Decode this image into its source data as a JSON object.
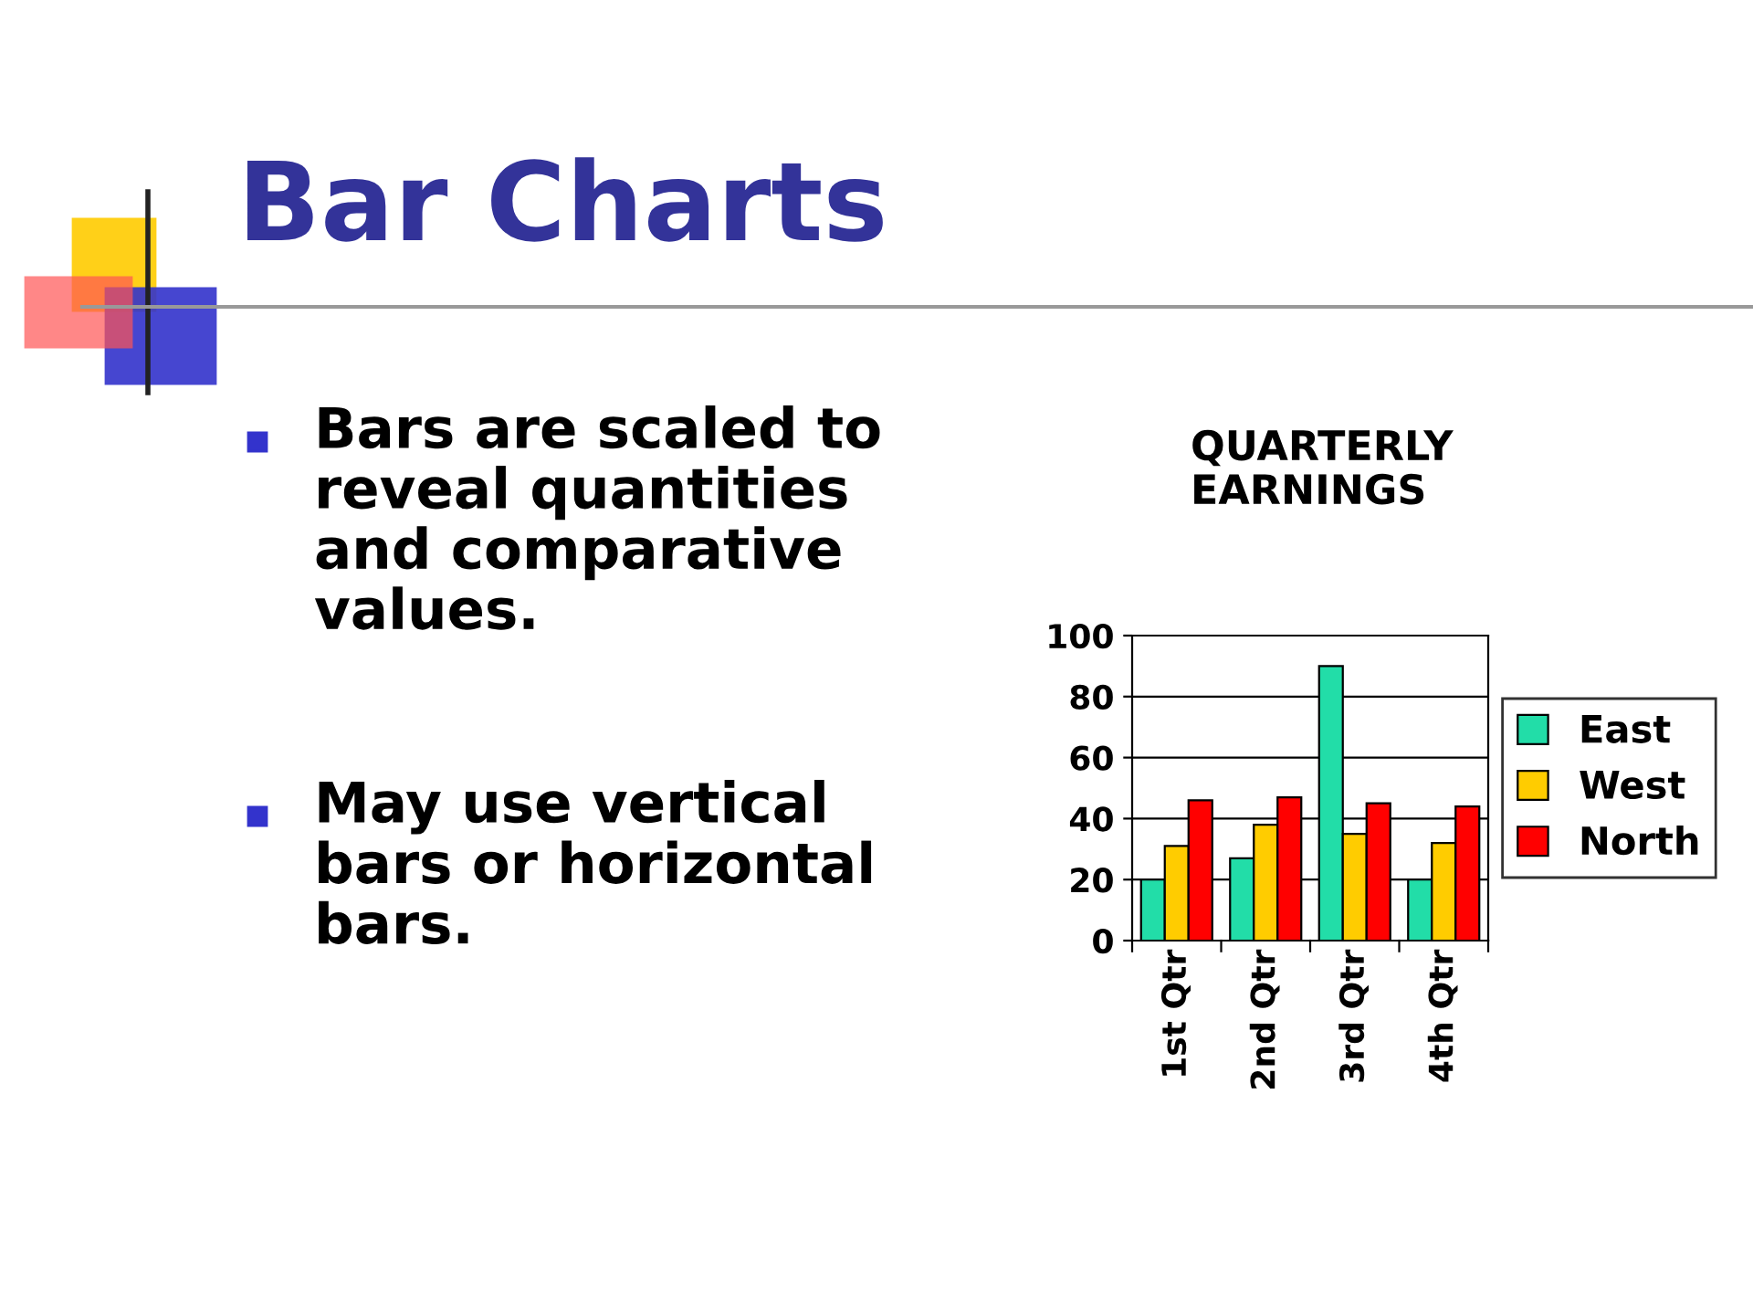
{
  "chart_data": {
    "type": "bar",
    "title": "QUARTERLY EARNINGS",
    "categories": [
      "1st Qtr",
      "2nd Qtr",
      "3rd Qtr",
      "4th Qtr"
    ],
    "series": [
      {
        "name": "East",
        "color": "#22dda8",
        "values": [
          20,
          27,
          90,
          20
        ]
      },
      {
        "name": "West",
        "color": "#ffcc00",
        "values": [
          31,
          38,
          35,
          32
        ]
      },
      {
        "name": "North",
        "color": "#ff0000",
        "values": [
          46,
          47,
          45,
          44
        ]
      }
    ],
    "ylim": [
      0,
      100
    ],
    "yticks": [
      0,
      20,
      40,
      60,
      80,
      100
    ],
    "grid": "y",
    "legend": "right",
    "annotations": [
      "Bar Charts",
      "Bars are scaled to reveal quantities and comparative values.",
      "May use vertical bars or horizontal bars."
    ]
  }
}
